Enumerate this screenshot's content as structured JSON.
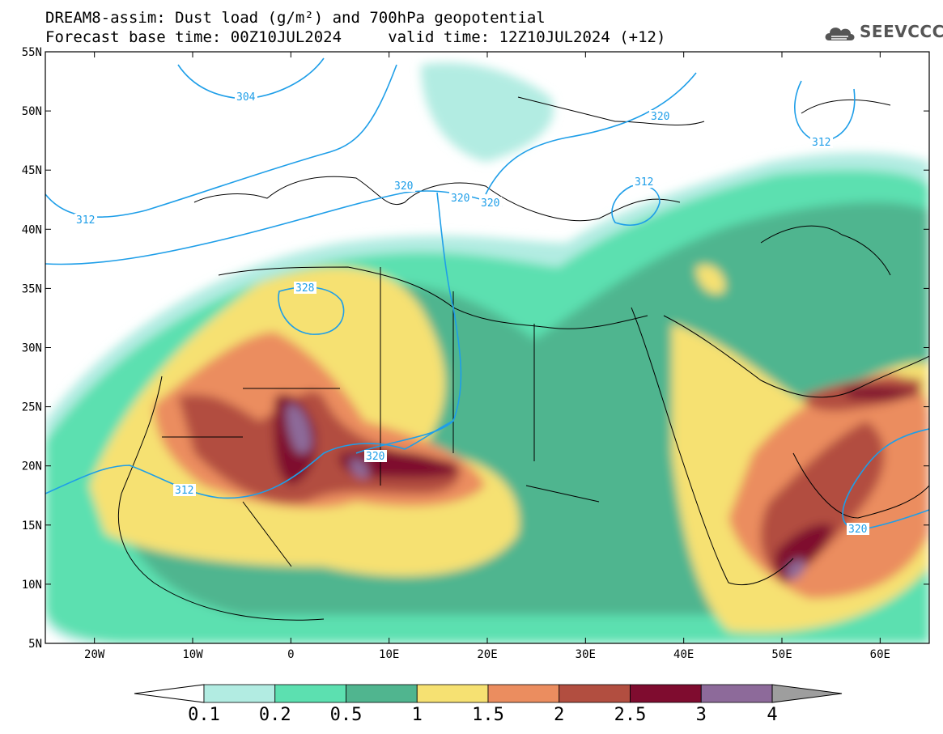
{
  "header": {
    "title_line1": "DREAM8-assim: Dust load (g/m²) and 700hPa geopotential",
    "title_line2": "Forecast base time: 00Z10JUL2024     valid time: 12Z10JUL2024 (+12)"
  },
  "logo": {
    "text": "SEEVCCC",
    "icon": "cloud-logo-icon"
  },
  "map": {
    "lat_ticks": [
      "55N",
      "50N",
      "45N",
      "40N",
      "35N",
      "30N",
      "25N",
      "20N",
      "15N",
      "10N",
      "5N"
    ],
    "lon_ticks": [
      "20W",
      "10W",
      "0",
      "10E",
      "20E",
      "30E",
      "40E",
      "50E",
      "60E"
    ],
    "lat_range": [
      5,
      55
    ],
    "lon_range": [
      -25,
      65
    ],
    "contour_labels": [
      "304",
      "320",
      "312",
      "328",
      "320",
      "320",
      "320",
      "320",
      "312",
      "312",
      "312",
      "320",
      "312"
    ]
  },
  "colorbar": {
    "levels": [
      "0.1",
      "0.2",
      "0.5",
      "1",
      "1.5",
      "2",
      "2.5",
      "3",
      "4"
    ],
    "colors": [
      "#ffffff",
      "#b2ece2",
      "#5ce0b0",
      "#50b58f",
      "#f6e172",
      "#eb8d5f",
      "#b24e40",
      "#7f0c2f",
      "#8d6a9a",
      "#9e9e9e"
    ]
  }
}
